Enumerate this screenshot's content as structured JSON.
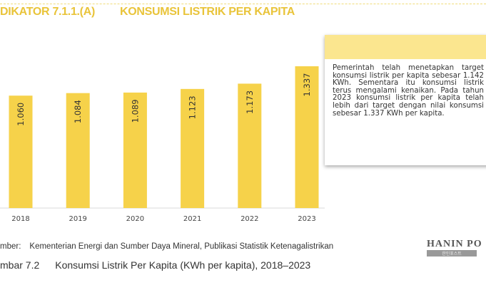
{
  "header": {
    "indicator": "DIKATOR 7.1.1.(A)",
    "title": "KONSUMSI LISTRIK PER KAPITA"
  },
  "info_box": {
    "text": "Pemerintah telah menetapkan target konsumsi listrik per kapita sebesar 1.142 KWh. Sementara itu konsumsi listrik terus mengalami kenaikan. Pada tahun 2023 konsumsi listrik per kapita telah lebih dari target dengan nilai konsumsi sebesar 1.337 KWh per kapita."
  },
  "source": {
    "label": "mber:",
    "text": "Kementerian Energi dan Sumber Daya Mineral, Publikasi Statistik Ketenagalistrikan"
  },
  "caption": {
    "label": "mbar 7.2",
    "text": "Konsumsi Listrik Per Kapita (KWh per kapita), 2018–2023"
  },
  "watermark": {
    "text": "HANIN PO",
    "sub": "한인포스트"
  },
  "colors": {
    "bar": "#f6d24a",
    "accent": "#e9c43a",
    "box_header": "#fbe68f"
  },
  "chart_data": {
    "type": "bar",
    "title": "Konsumsi Listrik Per Kapita",
    "categories": [
      "2018",
      "2019",
      "2020",
      "2021",
      "2022",
      "2023"
    ],
    "values": [
      1060,
      1084,
      1089,
      1123,
      1173,
      1337
    ],
    "value_labels": [
      "1.060",
      "1.084",
      "1.089",
      "1.123",
      "1.173",
      "1.337"
    ],
    "xlabel": "",
    "ylabel": "KWh per kapita",
    "ylim": [
      0,
      1337
    ],
    "grid": false
  }
}
